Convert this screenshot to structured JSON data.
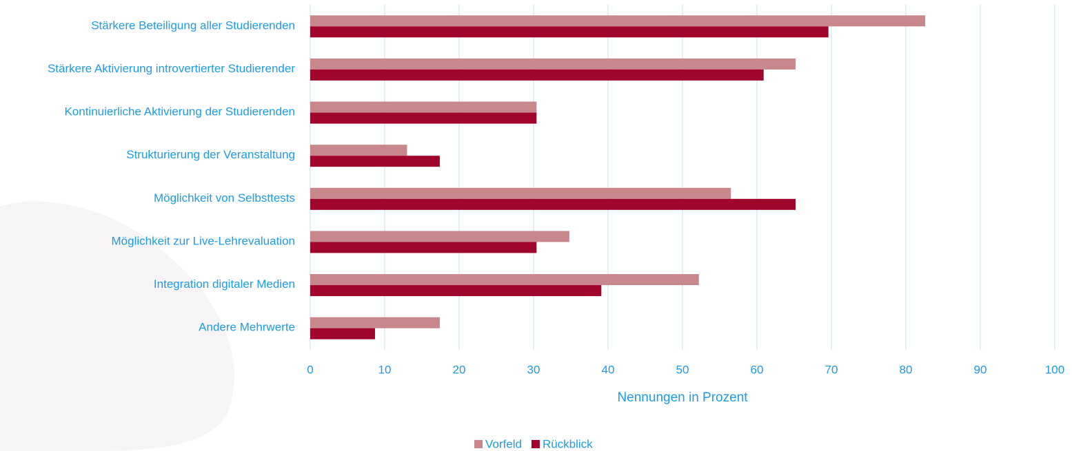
{
  "chart_data": {
    "type": "barh",
    "categories": [
      "Stärkere Beteiligung aller Studierenden",
      "Stärkere Aktivierung introvertierter Studierender",
      "Kontinuierliche Aktivierung der Studierenden",
      "Strukturierung der Veranstaltung",
      "Möglichkeit von Selbsttests",
      "Möglichkeit zur Live-Lehrevaluation",
      "Integration digitaler Medien",
      "Andere Mehrwerte"
    ],
    "series": [
      {
        "name": "Vorfeld",
        "color": "#c8878a",
        "values": [
          82.6,
          65.2,
          30.4,
          13.0,
          56.5,
          34.8,
          52.2,
          17.4
        ]
      },
      {
        "name": "Rückblick",
        "color": "#a0062b",
        "values": [
          69.6,
          60.9,
          30.4,
          17.4,
          65.2,
          30.4,
          39.1,
          8.7
        ]
      }
    ],
    "xlabel": "Nennungen in Prozent",
    "xlim": [
      0,
      100
    ],
    "xticks": [
      0,
      10,
      20,
      30,
      40,
      50,
      60,
      70,
      80,
      90,
      100
    ],
    "grid": true,
    "legend": "bottom"
  }
}
